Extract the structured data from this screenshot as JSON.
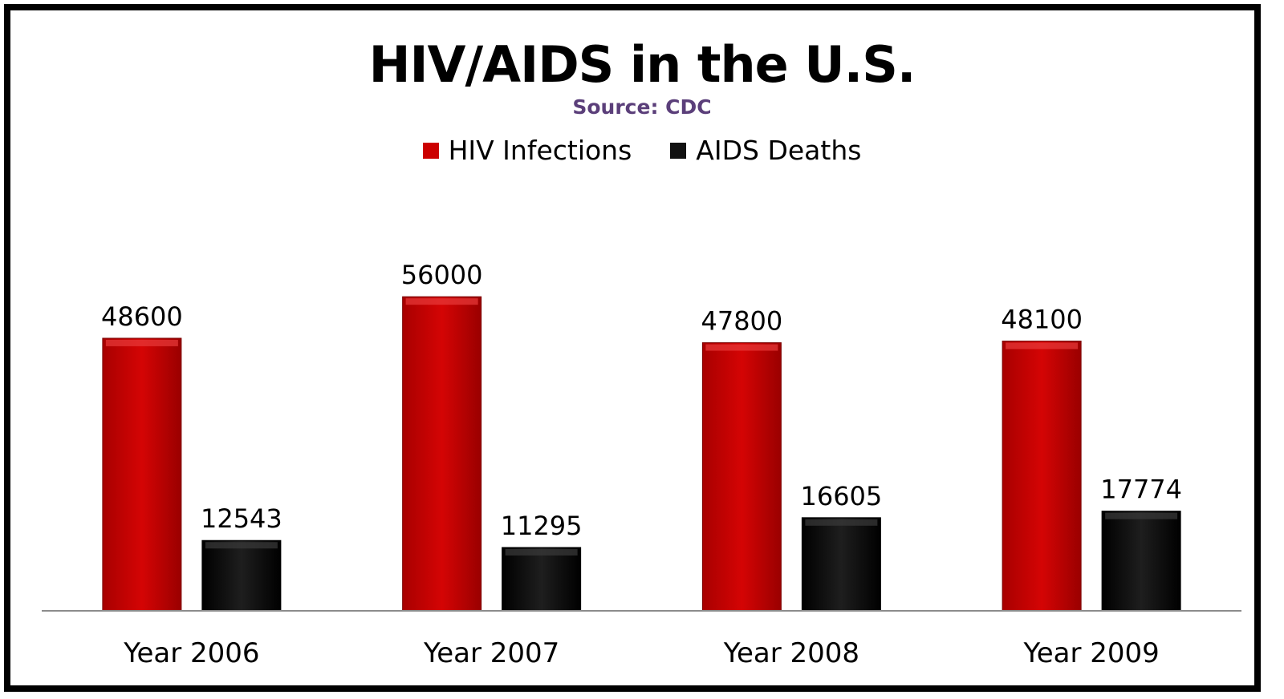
{
  "chart_data": {
    "type": "bar",
    "title": "HIV/AIDS in the U.S.",
    "subtitle": "Source: CDC",
    "categories": [
      "Year 2006",
      "Year 2007",
      "Year 2008",
      "Year 2009"
    ],
    "series": [
      {
        "name": "HIV Infections",
        "values": [
          48600,
          56000,
          47800,
          48100
        ],
        "color": "#cc0000"
      },
      {
        "name": "AIDS Deaths",
        "values": [
          12543,
          11295,
          16605,
          17774
        ],
        "color": "#111111"
      }
    ],
    "xlabel": "",
    "ylabel": "",
    "ylim": [
      0,
      60000
    ],
    "grid": false,
    "legend_position": "top-center",
    "data_labels": true
  }
}
